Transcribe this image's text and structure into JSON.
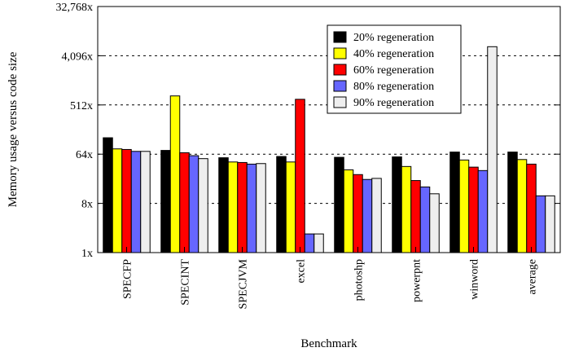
{
  "chart_data": {
    "type": "bar",
    "title": "",
    "xlabel": "Benchmark",
    "ylabel": "Memory usage versus code size",
    "yscale": "log2",
    "ylim": [
      1,
      32768
    ],
    "yticks": [
      {
        "value": 1,
        "label": "1x"
      },
      {
        "value": 8,
        "label": "8x"
      },
      {
        "value": 64,
        "label": "64x"
      },
      {
        "value": 512,
        "label": "512x"
      },
      {
        "value": 4096,
        "label": "4,096x"
      },
      {
        "value": 32768,
        "label": "32,768x"
      }
    ],
    "grid": "dashed horizontal at major ticks",
    "legend_position": "top-right",
    "categories": [
      "SPECFP",
      "SPECINT",
      "SPECJVM",
      "excel",
      "photoshp",
      "powerpnt",
      "winword",
      "average"
    ],
    "series": [
      {
        "name": "20% regeneration",
        "color": "#000000",
        "values": [
          128,
          75,
          55,
          58,
          56,
          57,
          70,
          70
        ]
      },
      {
        "name": "40% regeneration",
        "color": "#ffff00",
        "values": [
          80,
          750,
          46,
          46,
          33,
          38,
          50,
          51
        ]
      },
      {
        "name": "60% regeneration",
        "color": "#ff0000",
        "values": [
          78,
          68,
          45,
          650,
          27,
          21,
          37,
          42
        ]
      },
      {
        "name": "80% regeneration",
        "color": "#6666ff",
        "values": [
          72,
          60,
          42,
          2.2,
          22,
          16,
          32,
          11
        ]
      },
      {
        "name": "90% regeneration",
        "color": "#eeeeee",
        "values": [
          72,
          53,
          43,
          2.2,
          23,
          12,
          6000,
          11
        ]
      }
    ]
  }
}
